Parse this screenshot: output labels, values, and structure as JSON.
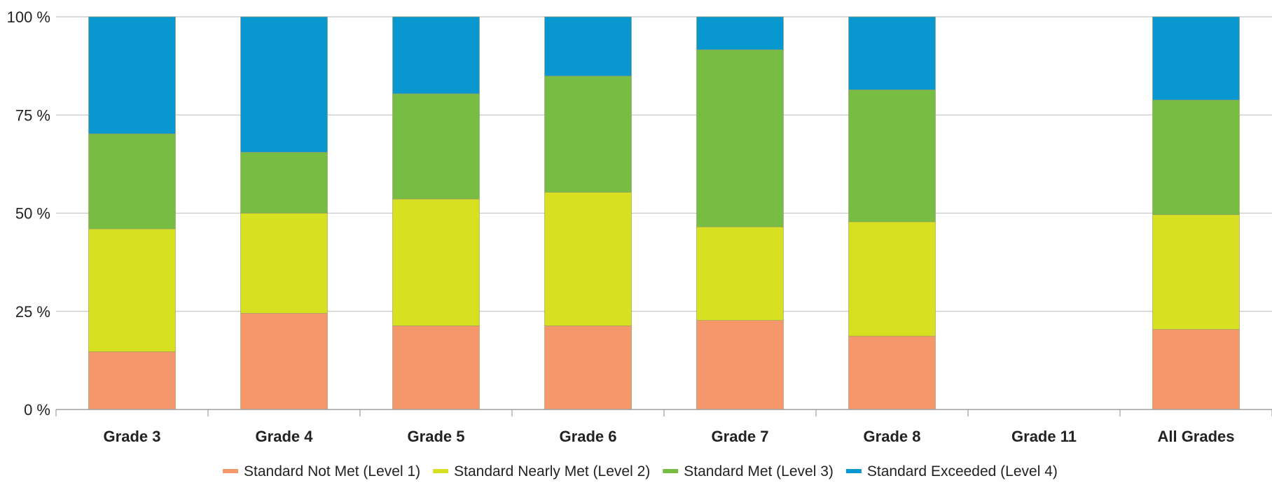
{
  "chart_data": {
    "type": "bar",
    "stacked": true,
    "percent": true,
    "categories": [
      "Grade 3",
      "Grade 4",
      "Grade 5",
      "Grade 6",
      "Grade 7",
      "Grade 8",
      "Grade 11",
      "All Grades"
    ],
    "series": [
      {
        "name": "Standard Not Met (Level 1)",
        "color": "#f4976a",
        "values": [
          14.7,
          24.5,
          21.3,
          21.3,
          22.7,
          18.7,
          null,
          20.4
        ]
      },
      {
        "name": "Standard Nearly Met (Level 2)",
        "color": "#d8e022",
        "values": [
          31.3,
          25.5,
          32.3,
          34.0,
          23.8,
          29.1,
          null,
          29.2
        ]
      },
      {
        "name": "Standard Met (Level 3)",
        "color": "#77bd43",
        "values": [
          24.2,
          15.5,
          26.8,
          29.6,
          45.1,
          33.6,
          null,
          29.2
        ]
      },
      {
        "name": "Standard Exceeded (Level 4)",
        "color": "#0898cf",
        "values": [
          29.8,
          34.5,
          19.6,
          15.1,
          8.4,
          18.6,
          null,
          21.2
        ]
      }
    ],
    "ylim": [
      0,
      100
    ],
    "yticks": [
      0,
      25,
      50,
      75,
      100
    ],
    "ytick_labels": [
      "0 %",
      "25 %",
      "50 %",
      "75 %",
      "100 %"
    ],
    "xlabel": "",
    "ylabel": "",
    "title": "",
    "grid": true,
    "legend_position": "bottom"
  }
}
